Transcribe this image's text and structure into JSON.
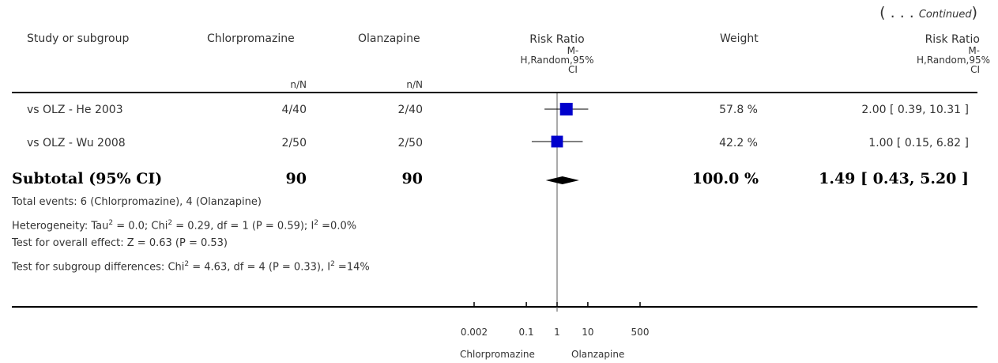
{
  "continued": {
    "prefix": "( . . . ",
    "word": "Continued",
    "suffix": ")"
  },
  "headers": {
    "study": "Study or subgroup",
    "chlorpromazine": "Chlorpromazine",
    "olanzapine": "Olanzapine",
    "rr1": [
      "Risk Ratio",
      "M-",
      "H,Random,95%",
      "CI"
    ],
    "weight": "Weight",
    "rr2": [
      "Risk Ratio",
      "M-",
      "H,Random,95%",
      "CI"
    ],
    "nN1": "n/N",
    "nN2": "n/N"
  },
  "rows": [
    {
      "study": "vs OLZ - He 2003",
      "chlor": "4/40",
      "olz": "2/40",
      "weight": "57.8 %",
      "ci": "2.00 [ 0.39, 10.31 ]"
    },
    {
      "study": "vs OLZ - Wu 2008",
      "chlor": "2/50",
      "olz": "2/50",
      "weight": "42.2 %",
      "ci": "1.00 [ 0.15, 6.82 ]"
    }
  ],
  "subtotal": {
    "label": "Subtotal (95% CI)",
    "chlor": "90",
    "olz": "90",
    "weight": "100.0 %",
    "ci": "1.49 [ 0.43, 5.20 ]"
  },
  "notes": {
    "events": "Total events: 6 (Chlorpromazine), 4 (Olanzapine)",
    "hetero_pre": "Heterogeneity: Tau",
    "hetero_mid1": " = 0.0; Chi",
    "hetero_mid2": " = 0.29, df = 1 (P = 0.59); I",
    "hetero_post": " =0.0%",
    "overall": "Test for overall effect: Z = 0.63 (P = 0.53)",
    "subgroup_pre": "Test for subgroup differences: Chi",
    "subgroup_mid": " = 4.63, df = 4 (P = 0.33), I",
    "subgroup_post": " =14%",
    "sup": "2"
  },
  "axis": {
    "ticks": [
      "0.002",
      "0.1",
      "1",
      "10",
      "500"
    ],
    "left_label": "Chlorpromazine",
    "right_label": "Olanzapine"
  },
  "colors": {
    "marker": "#0000cc",
    "diamond": "#000000",
    "line": "#000000"
  },
  "chart_data": {
    "type": "forest",
    "scale": "log",
    "xlim": [
      0.002,
      500
    ],
    "ticks": [
      0.002,
      0.1,
      1,
      10,
      500
    ],
    "studies": [
      {
        "name": "vs OLZ - He 2003",
        "rr": 2.0,
        "lo": 0.39,
        "hi": 10.31,
        "weight": 57.8
      },
      {
        "name": "vs OLZ - Wu 2008",
        "rr": 1.0,
        "lo": 0.15,
        "hi": 6.82,
        "weight": 42.2
      }
    ],
    "pooled": {
      "rr": 1.49,
      "lo": 0.43,
      "hi": 5.2
    }
  }
}
